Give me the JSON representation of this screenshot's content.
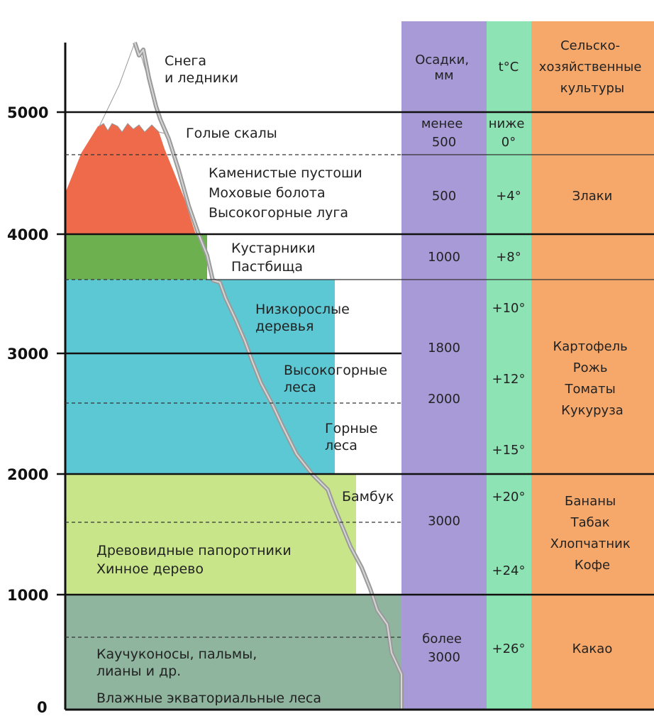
{
  "axis": {
    "ticks": [
      "5000",
      "4000",
      "3000",
      "2000",
      "1000",
      "0"
    ]
  },
  "headers": {
    "precip": [
      "Осадки,",
      "мм"
    ],
    "temp": [
      "t°C"
    ],
    "crops": [
      "Сельско-",
      "хозяйственные",
      "культуры"
    ]
  },
  "zones": {
    "snow": [
      "Снега",
      "и ледники"
    ],
    "rocks": [
      "Голые скалы"
    ],
    "stony": [
      "Каменистые пустоши",
      "Моховые болота",
      "Высокогорные луга"
    ],
    "shrubs": [
      "Кустарники",
      "Пастбища"
    ],
    "low_trees": [
      "Низкорослые",
      "деревья"
    ],
    "high_forest": [
      "Высокогорные",
      "леса"
    ],
    "mountain_forest": [
      "Горные",
      "леса"
    ],
    "bamboo": [
      "Бамбук"
    ],
    "ferns": [
      "Древовидные папоротники",
      "Хинное дерево"
    ],
    "rubber": [
      "Каучуконосы, пальмы,",
      "лианы и др."
    ],
    "equatorial": [
      "Влажные экваториальные леса"
    ]
  },
  "precipitation": {
    "p1": [
      "менее",
      "500"
    ],
    "p2": [
      "500"
    ],
    "p3": [
      "1000"
    ],
    "p4": [
      "1800"
    ],
    "p5": [
      "2000"
    ],
    "p6": [
      "3000"
    ],
    "p7": [
      "более",
      "3000"
    ]
  },
  "temperature": {
    "t1": [
      "ниже",
      "0°"
    ],
    "t2": [
      "+4°"
    ],
    "t3": [
      "+8°"
    ],
    "t4": [
      "+10°"
    ],
    "t5": [
      "+12°"
    ],
    "t6": [
      "+15°"
    ],
    "t7": [
      "+20°"
    ],
    "t8": [
      "+24°"
    ],
    "t9": [
      "+26°"
    ]
  },
  "crops": {
    "c1": [
      "Злаки"
    ],
    "c2": [
      "Картофель",
      "Рожь",
      "Томаты",
      "Кукуруза"
    ],
    "c3": [
      "Бананы",
      "Табак",
      "Хлопчатник",
      "Кофе"
    ],
    "c4": [
      "Какао"
    ]
  },
  "colors": {
    "snow": "#ffffff",
    "rocks": "#ee6a4a",
    "shrubs": "#6db04f",
    "forest": "#5cc8d4",
    "ferns": "#c8e58a",
    "equatorial": "#8fb59f",
    "precip_col": "#a89ad6",
    "temp_col": "#8ee3b4",
    "crops_col": "#f5a86a"
  }
}
